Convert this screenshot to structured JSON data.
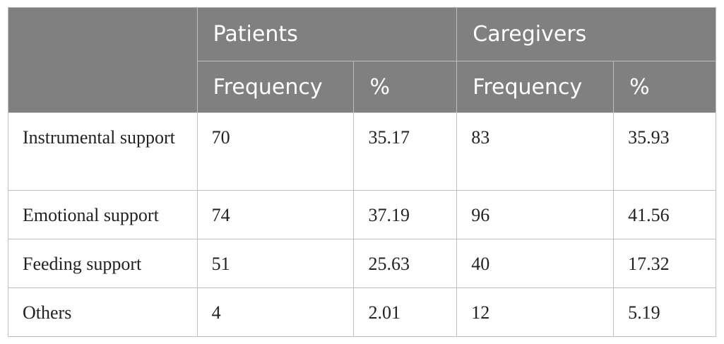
{
  "table": {
    "groups": [
      "Patients",
      "Caregivers"
    ],
    "subheaders": [
      "Frequency",
      "%",
      "Frequency",
      "%"
    ],
    "rows": [
      [
        "Instrumental support",
        "70",
        "35.17",
        "83",
        "35.93"
      ],
      [
        "Emotional support",
        "74",
        "37.19",
        "96",
        "41.56"
      ],
      [
        "Feeding support",
        "51",
        "25.63",
        "40",
        "17.32"
      ],
      [
        "Others",
        "4",
        "2.01",
        "12",
        "5.19"
      ]
    ]
  }
}
